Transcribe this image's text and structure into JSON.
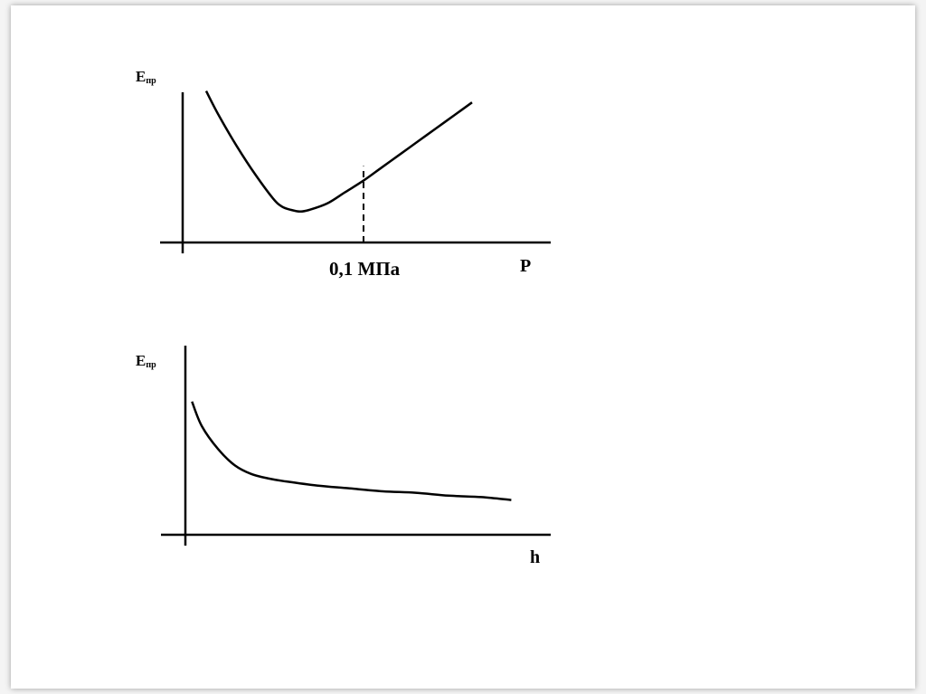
{
  "chart_data": [
    {
      "type": "line",
      "title": "",
      "xlabel": "P",
      "ylabel": "Eпр",
      "ylabel_main": "E",
      "ylabel_sub": "пр",
      "annotation": {
        "text": "0,1 МПа",
        "x": 0.1
      },
      "xlim": [
        0,
        0.2
      ],
      "ylim": [
        0,
        1
      ],
      "grid": false,
      "series": [
        {
          "x": [
            0.013,
            0.02,
            0.03,
            0.04,
            0.05,
            0.055,
            0.06,
            0.065,
            0.07,
            0.08,
            0.09,
            0.1,
            0.11,
            0.12,
            0.13,
            0.14,
            0.15,
            0.16
          ],
          "y": [
            0.93,
            0.78,
            0.59,
            0.42,
            0.27,
            0.22,
            0.2,
            0.19,
            0.2,
            0.24,
            0.31,
            0.38,
            0.46,
            0.54,
            0.62,
            0.7,
            0.78,
            0.86
          ]
        }
      ]
    },
    {
      "type": "line",
      "title": "",
      "xlabel": "h",
      "ylabel": "Eпр",
      "ylabel_main": "E",
      "ylabel_sub": "пр",
      "xlim": [
        0,
        1
      ],
      "ylim": [
        0,
        1
      ],
      "grid": false,
      "series": [
        {
          "x": [
            0.02,
            0.05,
            0.1,
            0.15,
            0.2,
            0.25,
            0.3,
            0.4,
            0.5,
            0.6,
            0.7,
            0.8,
            0.9,
            0.99
          ],
          "y": [
            0.92,
            0.75,
            0.59,
            0.48,
            0.42,
            0.39,
            0.37,
            0.34,
            0.32,
            0.3,
            0.29,
            0.27,
            0.26,
            0.24
          ]
        }
      ]
    }
  ]
}
